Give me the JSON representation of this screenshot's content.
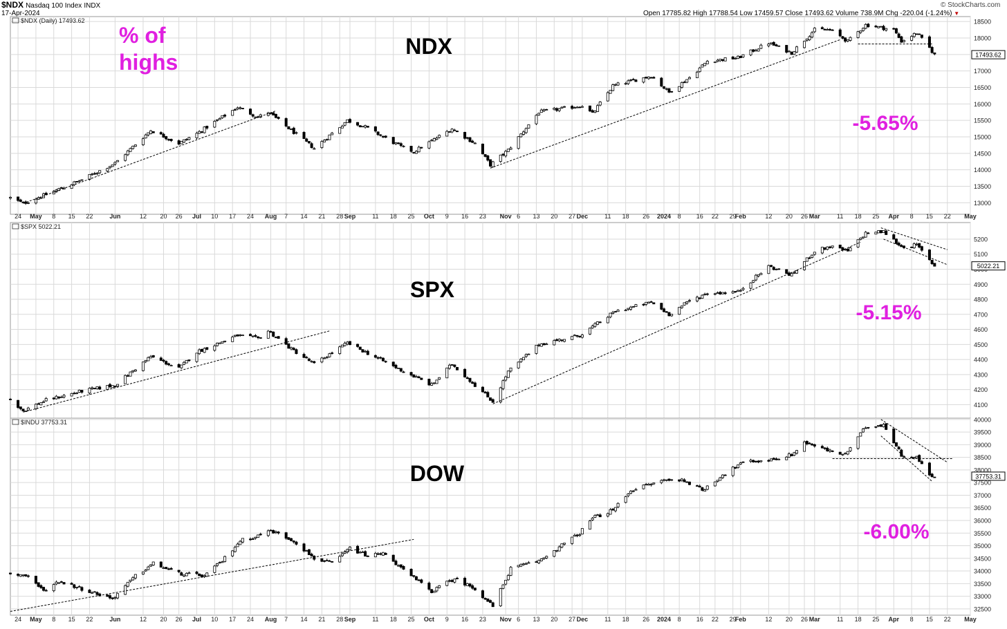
{
  "header": {
    "symbol": "$NDX",
    "name": "Nasdaq 100 Index",
    "exchange": "INDX",
    "date": "17-Apr-2024",
    "brand": "© StockCharts.com",
    "ohlc_label": "Open 17785.82  High 17788.54  Low 17459.57  Close 17493.62  Volume 738.9M  Chg -220.04 (-1.24%)",
    "chg_marker": "▼"
  },
  "overlay": {
    "highs_label_line1": "% of",
    "highs_label_line2": "highs"
  },
  "colors": {
    "magenta": "#e020e0",
    "grid": "#d9d9d9",
    "candle": "#000000",
    "bg": "#ffffff"
  },
  "chart_data": [
    {
      "type": "candlestick",
      "legend": "$NDX (Daily) 17493.62",
      "big_label": "NDX",
      "pct_label": "-5.65%",
      "last_value_label": "17493.62",
      "x_range": [
        "2023-04-21",
        "2024-05-01"
      ],
      "ylim": [
        12650,
        18650
      ],
      "y_ticks": [
        13000,
        13500,
        14000,
        14500,
        15000,
        15500,
        16000,
        16500,
        17000,
        17500,
        18000,
        18500
      ],
      "x_tick_labels": [
        "24",
        "May",
        "8",
        "15",
        "22",
        "Jun",
        "12",
        "20",
        "26",
        "Jul",
        "10",
        "17",
        "24",
        "Aug",
        "7",
        "14",
        "21",
        "28",
        "Sep",
        "11",
        "18",
        "25",
        "Oct",
        "9",
        "16",
        "23",
        "Nov",
        "6",
        "13",
        "20",
        "27",
        "Dec",
        "11",
        "18",
        "26",
        "2024",
        "8",
        "16",
        "22",
        "29",
        "Feb",
        "12",
        "20",
        "26",
        "Mar",
        "11",
        "18",
        "25",
        "Apr",
        "8",
        "15",
        "22",
        "May"
      ],
      "anchors": [
        [
          "2023-04-21",
          13150
        ],
        [
          "2023-04-26",
          12980
        ],
        [
          "2023-05-05",
          13250
        ],
        [
          "2023-05-19",
          13700
        ],
        [
          "2023-06-01",
          14200
        ],
        [
          "2023-06-15",
          15200
        ],
        [
          "2023-06-26",
          14800
        ],
        [
          "2023-07-03",
          15100
        ],
        [
          "2023-07-19",
          15900
        ],
        [
          "2023-07-27",
          15600
        ],
        [
          "2023-07-31",
          15750
        ],
        [
          "2023-08-09",
          15200
        ],
        [
          "2023-08-18",
          14650
        ],
        [
          "2023-08-31",
          15500
        ],
        [
          "2023-09-07",
          15300
        ],
        [
          "2023-09-21",
          14700
        ],
        [
          "2023-09-26",
          14550
        ],
        [
          "2023-10-11",
          15250
        ],
        [
          "2023-10-20",
          14800
        ],
        [
          "2023-10-26",
          14150
        ],
        [
          "2023-11-02",
          14600
        ],
        [
          "2023-11-14",
          15750
        ],
        [
          "2023-12-01",
          15950
        ],
        [
          "2023-12-05",
          15700
        ],
        [
          "2023-12-13",
          16550
        ],
        [
          "2023-12-28",
          16850
        ],
        [
          "2024-01-04",
          16350
        ],
        [
          "2024-01-12",
          16800
        ],
        [
          "2024-01-19",
          17300
        ],
        [
          "2024-01-31",
          17400
        ],
        [
          "2024-02-12",
          17850
        ],
        [
          "2024-02-21",
          17550
        ],
        [
          "2024-03-01",
          18250
        ],
        [
          "2024-03-07",
          18250
        ],
        [
          "2024-03-14",
          17900
        ],
        [
          "2024-03-21",
          18400
        ],
        [
          "2024-04-01",
          18250
        ],
        [
          "2024-04-04",
          17900
        ],
        [
          "2024-04-10",
          18150
        ],
        [
          "2024-04-15",
          17700
        ],
        [
          "2024-04-17",
          17493.62
        ]
      ],
      "trendlines": [
        {
          "from": [
            "2023-04-26",
            12980
          ],
          "to": [
            "2023-08-03",
            15790
          ],
          "style": "dashed"
        },
        {
          "from": [
            "2023-10-26",
            14050
          ],
          "to": [
            "2024-03-11",
            17950
          ],
          "style": "dashed"
        },
        {
          "from": [
            "2024-03-18",
            17820
          ],
          "to": [
            "2024-04-16",
            17820
          ],
          "style": "dashed"
        }
      ]
    },
    {
      "type": "candlestick",
      "legend": "$SPX 5022.21",
      "big_label": "SPX",
      "pct_label": "-5.15%",
      "last_value_label": "5022.21",
      "x_range": [
        "2023-04-21",
        "2024-05-01"
      ],
      "ylim": [
        4010,
        5310
      ],
      "y_ticks": [
        4100,
        4200,
        4300,
        4400,
        4500,
        4600,
        4700,
        4800,
        4900,
        5000,
        5100,
        5200
      ],
      "x_tick_labels": [],
      "anchors": [
        [
          "2023-04-21",
          4135
        ],
        [
          "2023-04-26",
          4060
        ],
        [
          "2023-05-05",
          4130
        ],
        [
          "2023-05-19",
          4190
        ],
        [
          "2023-06-01",
          4230
        ],
        [
          "2023-06-15",
          4420
        ],
        [
          "2023-06-26",
          4340
        ],
        [
          "2023-07-03",
          4450
        ],
        [
          "2023-07-19",
          4560
        ],
        [
          "2023-07-27",
          4540
        ],
        [
          "2023-07-31",
          4590
        ],
        [
          "2023-08-09",
          4470
        ],
        [
          "2023-08-18",
          4370
        ],
        [
          "2023-08-31",
          4510
        ],
        [
          "2023-09-07",
          4450
        ],
        [
          "2023-09-21",
          4330
        ],
        [
          "2023-10-03",
          4230
        ],
        [
          "2023-10-11",
          4370
        ],
        [
          "2023-10-20",
          4230
        ],
        [
          "2023-10-27",
          4120
        ],
        [
          "2023-11-02",
          4320
        ],
        [
          "2023-11-14",
          4500
        ],
        [
          "2023-11-30",
          4560
        ],
        [
          "2023-12-14",
          4720
        ],
        [
          "2023-12-28",
          4780
        ],
        [
          "2024-01-04",
          4700
        ],
        [
          "2024-01-12",
          4790
        ],
        [
          "2024-01-19",
          4840
        ],
        [
          "2024-01-31",
          4850
        ],
        [
          "2024-02-12",
          5020
        ],
        [
          "2024-02-21",
          4960
        ],
        [
          "2024-03-01",
          5120
        ],
        [
          "2024-03-07",
          5150
        ],
        [
          "2024-03-14",
          5120
        ],
        [
          "2024-03-21",
          5240
        ],
        [
          "2024-03-28",
          5250
        ],
        [
          "2024-04-04",
          5150
        ],
        [
          "2024-04-10",
          5160
        ],
        [
          "2024-04-15",
          5060
        ],
        [
          "2024-04-17",
          5022.21
        ]
      ],
      "trendlines": [
        {
          "from": [
            "2023-04-26",
            4050
          ],
          "to": [
            "2023-08-24",
            4590
          ],
          "style": "dashed"
        },
        {
          "from": [
            "2023-10-27",
            4105
          ],
          "to": [
            "2024-03-19",
            5180
          ],
          "style": "dashed"
        },
        {
          "from": [
            "2024-03-27",
            5275
          ],
          "to": [
            "2024-04-22",
            5130
          ],
          "style": "dashed"
        },
        {
          "from": [
            "2024-03-28",
            5200
          ],
          "to": [
            "2024-04-22",
            5030
          ],
          "style": "dashed"
        }
      ]
    },
    {
      "type": "candlestick",
      "legend": "$INDU 37753.31",
      "big_label": "DOW",
      "pct_label": "-6.00%",
      "last_value_label": "37753.31",
      "x_range": [
        "2023-04-21",
        "2024-05-01"
      ],
      "ylim": [
        32250,
        40050
      ],
      "y_ticks": [
        32500,
        33000,
        33500,
        34000,
        34500,
        35000,
        35500,
        36000,
        36500,
        37000,
        37500,
        38000,
        38500,
        39000,
        39500,
        40000
      ],
      "x_tick_labels": [
        "24",
        "May",
        "8",
        "15",
        "22",
        "Jun",
        "12",
        "20",
        "26",
        "Jul",
        "10",
        "17",
        "24",
        "Aug",
        "7",
        "14",
        "21",
        "28",
        "Sep",
        "11",
        "18",
        "25",
        "Oct",
        "9",
        "16",
        "23",
        "Nov",
        "6",
        "13",
        "20",
        "27",
        "Dec",
        "11",
        "18",
        "26",
        "2024",
        "8",
        "16",
        "22",
        "29",
        "Feb",
        "12",
        "20",
        "26",
        "Mar",
        "11",
        "18",
        "25",
        "Apr",
        "8",
        "15",
        "22",
        "May"
      ],
      "anchors": [
        [
          "2023-04-21",
          33900
        ],
        [
          "2023-04-28",
          33800
        ],
        [
          "2023-05-04",
          33200
        ],
        [
          "2023-05-10",
          33600
        ],
        [
          "2023-05-19",
          33300
        ],
        [
          "2023-05-31",
          32900
        ],
        [
          "2023-06-09",
          33800
        ],
        [
          "2023-06-16",
          34300
        ],
        [
          "2023-06-26",
          33900
        ],
        [
          "2023-07-06",
          33800
        ],
        [
          "2023-07-13",
          34400
        ],
        [
          "2023-07-20",
          35200
        ],
        [
          "2023-07-27",
          35400
        ],
        [
          "2023-08-01",
          35600
        ],
        [
          "2023-08-10",
          35200
        ],
        [
          "2023-08-18",
          34500
        ],
        [
          "2023-08-25",
          34300
        ],
        [
          "2023-09-01",
          34900
        ],
        [
          "2023-09-08",
          34600
        ],
        [
          "2023-09-15",
          34700
        ],
        [
          "2023-09-21",
          34100
        ],
        [
          "2023-10-03",
          33200
        ],
        [
          "2023-10-12",
          33700
        ],
        [
          "2023-10-20",
          33300
        ],
        [
          "2023-10-27",
          32600
        ],
        [
          "2023-11-03",
          34100
        ],
        [
          "2023-11-14",
          34400
        ],
        [
          "2023-11-30",
          35500
        ],
        [
          "2023-12-05",
          36100
        ],
        [
          "2023-12-13",
          36400
        ],
        [
          "2023-12-20",
          37200
        ],
        [
          "2024-01-02",
          37600
        ],
        [
          "2024-01-10",
          37600
        ],
        [
          "2024-01-17",
          37200
        ],
        [
          "2024-01-25",
          37800
        ],
        [
          "2024-02-02",
          38300
        ],
        [
          "2024-02-13",
          38400
        ],
        [
          "2024-02-21",
          38600
        ],
        [
          "2024-02-26",
          39100
        ],
        [
          "2024-03-05",
          38800
        ],
        [
          "2024-03-13",
          38600
        ],
        [
          "2024-03-21",
          39700
        ],
        [
          "2024-03-28",
          39800
        ],
        [
          "2024-04-04",
          38600
        ],
        [
          "2024-04-10",
          38500
        ],
        [
          "2024-04-15",
          37800
        ],
        [
          "2024-04-17",
          37753.31
        ]
      ],
      "trendlines": [
        {
          "from": [
            "2023-04-21",
            32400
          ],
          "to": [
            "2023-09-26",
            35250
          ],
          "style": "dashed"
        },
        {
          "from": [
            "2024-03-27",
            40000
          ],
          "to": [
            "2024-04-22",
            38300
          ],
          "style": "dashed"
        },
        {
          "from": [
            "2024-03-27",
            39350
          ],
          "to": [
            "2024-04-16",
            37550
          ],
          "style": "dashed"
        },
        {
          "from": [
            "2024-03-08",
            38450
          ],
          "to": [
            "2024-04-24",
            38450
          ],
          "style": "dashed"
        }
      ]
    }
  ]
}
